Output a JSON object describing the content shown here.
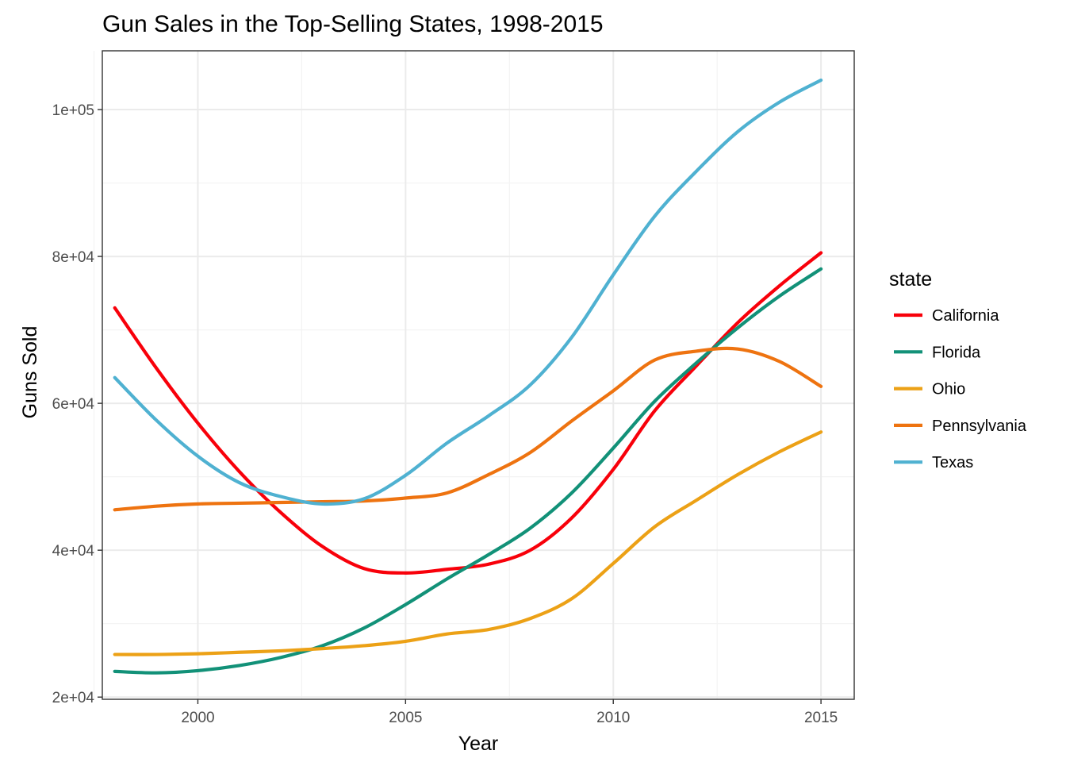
{
  "chart_data": {
    "type": "line",
    "title": "Gun Sales in the Top-Selling States, 1998-2015",
    "xlabel": "Year",
    "ylabel": "Guns Sold",
    "xlim": [
      1997.7,
      2015.8
    ],
    "ylim": [
      19700,
      108000
    ],
    "x_ticks": [
      2000,
      2005,
      2010,
      2015
    ],
    "x_tick_labels": [
      "2000",
      "2005",
      "2010",
      "2015"
    ],
    "y_ticks": [
      20000,
      40000,
      60000,
      80000,
      100000
    ],
    "y_tick_labels": [
      "2e+04",
      "4e+04",
      "6e+04",
      "8e+04",
      "1e+05"
    ],
    "x_minor": [
      1997.5,
      2002.5,
      2007.5,
      2012.5
    ],
    "y_minor": [
      30000,
      50000,
      70000,
      90000
    ],
    "grid": true,
    "legend": {
      "title": "state",
      "position": "right"
    },
    "x": [
      1998,
      1999,
      2000,
      2001,
      2002,
      2003,
      2004,
      2005,
      2006,
      2007,
      2008,
      2009,
      2010,
      2011,
      2012,
      2013,
      2014,
      2015
    ],
    "series": [
      {
        "name": "California",
        "color": "#F8000A",
        "values": [
          73000,
          64800,
          57300,
          50700,
          45100,
          40500,
          37500,
          36900,
          37400,
          38100,
          40000,
          44400,
          51000,
          59000,
          65100,
          71000,
          76000,
          80500
        ]
      },
      {
        "name": "Florida",
        "color": "#129178",
        "values": [
          23500,
          23300,
          23600,
          24300,
          25400,
          27000,
          29400,
          32600,
          36100,
          39400,
          43000,
          47800,
          53900,
          60300,
          65500,
          70300,
          74600,
          78300
        ]
      },
      {
        "name": "Ohio",
        "color": "#ECA116",
        "values": [
          25800,
          25800,
          25900,
          26100,
          26300,
          26600,
          27000,
          27600,
          28600,
          29200,
          30700,
          33400,
          38200,
          43200,
          46800,
          50300,
          53400,
          56100
        ]
      },
      {
        "name": "Pennsylvania",
        "color": "#EE7310",
        "values": [
          45500,
          46000,
          46300,
          46400,
          46500,
          46600,
          46700,
          47100,
          47800,
          50300,
          53300,
          57600,
          61700,
          65900,
          67100,
          67400,
          65700,
          62300
        ]
      },
      {
        "name": "Texas",
        "color": "#4FB1D1",
        "values": [
          63500,
          57700,
          52800,
          49200,
          47300,
          46300,
          47000,
          50200,
          54600,
          58300,
          62500,
          69000,
          77500,
          85500,
          91600,
          97000,
          101000,
          104000
        ]
      }
    ]
  }
}
